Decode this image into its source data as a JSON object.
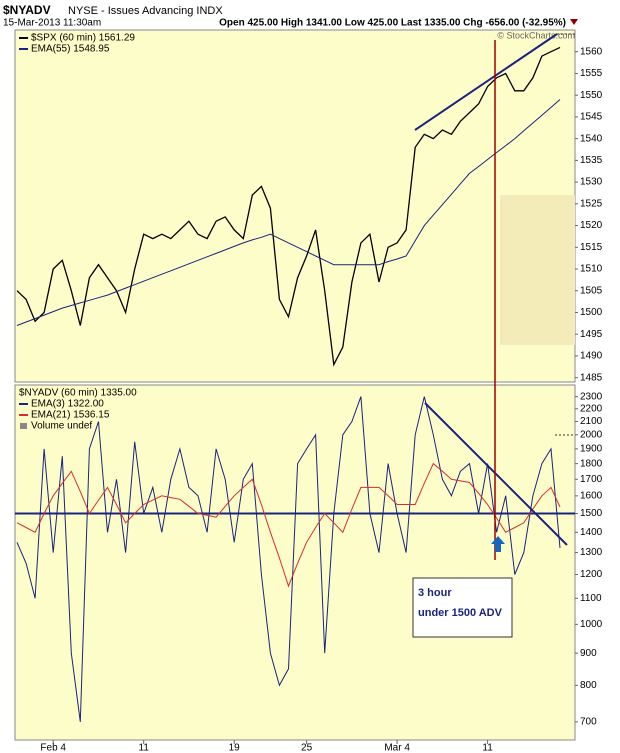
{
  "header": {
    "symbol": "$NYADV",
    "description": "NYSE - Issues Advancing INDX",
    "datetime": "15-Mar-2013 11:30am",
    "quote": "Open 425.00 High 1341.00 Low 425.00 Last 1335.00 Chg -656.00 (-32.95%)",
    "copyright": "© StockCharts.com"
  },
  "chart_data": [
    {
      "type": "line",
      "series": [
        {
          "name": "$SPX (60 min) 1561.29",
          "color": "#000000",
          "values": [
            1505,
            1503,
            1498,
            1500,
            1510,
            1512,
            1505,
            1497,
            1508,
            1511,
            1508,
            1505,
            1500,
            1510,
            1518,
            1517,
            1518,
            1517,
            1519,
            1521,
            1518,
            1517,
            1521,
            1522,
            1519,
            1517,
            1527,
            1529,
            1524,
            1503,
            1499,
            1508,
            1513,
            1519,
            1505,
            1488,
            1492,
            1507,
            1516,
            1518,
            1507,
            1515,
            1516,
            1519,
            1538,
            1541,
            1540,
            1542,
            1541,
            1544,
            1546,
            1548,
            1552,
            1554,
            1555,
            1551,
            1551,
            1554,
            1559,
            1560,
            1561
          ]
        },
        {
          "name": "EMA(55) 1548.95",
          "color": "#1a237e",
          "values": [
            1497,
            1497.8,
            1498.6,
            1499.4,
            1500.2,
            1501,
            1501.6,
            1502.2,
            1502.8,
            1503.4,
            1504,
            1504.8,
            1505.6,
            1506.4,
            1507.2,
            1508,
            1508.8,
            1509.6,
            1510.4,
            1511.2,
            1512,
            1512.8,
            1513.6,
            1514.4,
            1515.2,
            1516,
            1516.7,
            1517.3,
            1518,
            1517,
            1516,
            1515,
            1514,
            1513,
            1512,
            1511,
            1511,
            1511,
            1511,
            1511,
            1511,
            1511.7,
            1512.3,
            1513,
            1516.5,
            1520,
            1522.4,
            1524.8,
            1527.2,
            1529.6,
            1532,
            1533.6,
            1535.2,
            1536.8,
            1538.4,
            1540,
            1541.8,
            1543.6,
            1545.4,
            1547.2,
            1549
          ]
        }
      ],
      "ylim": [
        1484,
        1565
      ],
      "yticks": [
        1485,
        1490,
        1495,
        1500,
        1505,
        1510,
        1515,
        1520,
        1525,
        1530,
        1535,
        1540,
        1545,
        1550,
        1555,
        1560
      ]
    },
    {
      "type": "line",
      "title": "$NYADV (60 min) 1335.00",
      "categories": [
        null,
        null,
        null,
        null,
        "Feb 4",
        null,
        null,
        null,
        null,
        null,
        null,
        null,
        null,
        null,
        "11",
        null,
        null,
        null,
        null,
        null,
        null,
        null,
        null,
        null,
        "19",
        null,
        null,
        null,
        null,
        null,
        null,
        null,
        "25",
        null,
        null,
        null,
        null,
        null,
        null,
        null,
        null,
        null,
        "Mar 4",
        null,
        null,
        null,
        null,
        null,
        null,
        null,
        null,
        null,
        "11",
        null,
        null,
        null,
        null,
        null,
        null,
        null,
        null
      ],
      "series": [
        {
          "name": "EMA(3) 1322.00",
          "color": "#1a237e",
          "values": [
            1350,
            1250,
            1100,
            1900,
            1300,
            1850,
            900,
            700,
            1900,
            2100,
            1400,
            1700,
            1300,
            1950,
            1500,
            1650,
            1400,
            1700,
            1900,
            1650,
            1600,
            1400,
            1900,
            1700,
            1350,
            1700,
            1800,
            1200,
            900,
            800,
            850,
            1800,
            1900,
            2000,
            900,
            1500,
            2000,
            2100,
            2300,
            1500,
            1300,
            1800,
            1500,
            1300,
            2000,
            2300,
            2000,
            1700,
            1600,
            1750,
            1800,
            1500,
            1800,
            1400,
            1600,
            1200,
            1300,
            1600,
            1800,
            1900,
            1322
          ]
        },
        {
          "name": "EMA(21) 1536.15",
          "color": "#d32f2f",
          "values": [
            1450,
            1425,
            1400,
            1500,
            1600,
            1675,
            1750,
            1625,
            1500,
            1575,
            1650,
            1550,
            1450,
            1500,
            1550,
            1575,
            1600,
            1590,
            1580,
            1540,
            1500,
            1490,
            1480,
            1540,
            1600,
            1650,
            1700,
            1550,
            1400,
            1275,
            1150,
            1250,
            1350,
            1425,
            1500,
            1450,
            1400,
            1525,
            1650,
            1650,
            1650,
            1600,
            1550,
            1550,
            1550,
            1675,
            1800,
            1750,
            1700,
            1690,
            1680,
            1615,
            1550,
            1475,
            1400,
            1425,
            1450,
            1525,
            1600,
            1650,
            1536
          ]
        }
      ],
      "volume_legend": "Volume undef",
      "reference_line": 1500,
      "ylim": [
        655,
        2400
      ],
      "log": true,
      "yticks": [
        700,
        800,
        900,
        1000,
        1100,
        1200,
        1300,
        1400,
        1500,
        1600,
        1700,
        1800,
        1900,
        2000,
        2100,
        2200,
        2300
      ],
      "annotation": [
        "3 hour",
        "under 1500 ADV"
      ]
    }
  ]
}
